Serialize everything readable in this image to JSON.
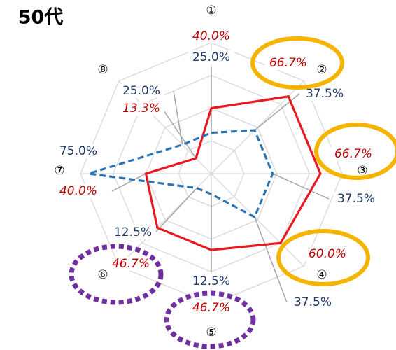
{
  "chart_data": {
    "type": "radar",
    "title": "50代",
    "categories": [
      "①",
      "②",
      "③",
      "④",
      "⑤",
      "⑥",
      "⑦",
      "⑧"
    ],
    "ylim": [
      0,
      80
    ],
    "yticks": [
      0,
      20,
      40,
      60,
      80
    ],
    "grid": true,
    "series": [
      {
        "color": "#e8191f",
        "style": "solid",
        "values": [
          40.0,
          66.7,
          66.7,
          60.0,
          46.7,
          46.7,
          40.0,
          13.3
        ],
        "value_labels": [
          "40.0%",
          "66.7%",
          "66.7%",
          "60.0%",
          "46.7%",
          "46.7%",
          "40.0%",
          "13.3%"
        ]
      },
      {
        "color": "#2e75b6",
        "style": "dashed",
        "values": [
          25.0,
          37.5,
          37.5,
          37.5,
          12.5,
          12.5,
          75.0,
          25.0
        ],
        "value_labels": [
          "25.0%",
          "37.5%",
          "37.5%",
          "37.5%",
          "12.5%",
          "12.5%",
          "75.0%",
          "25.0%"
        ]
      }
    ]
  }
}
